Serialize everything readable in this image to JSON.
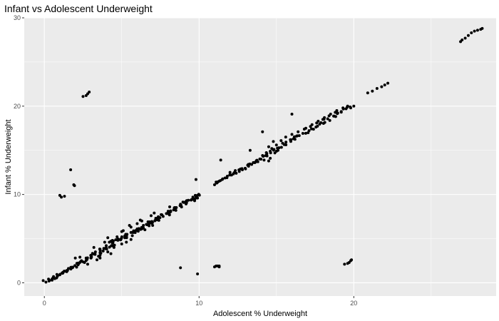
{
  "chart_data": {
    "type": "scatter",
    "title": "Infant vs Adolescent Underweight",
    "xlabel": "Adolescent % Underweight",
    "ylabel": "Infant % Underweight",
    "xlim": [
      -1.3,
      29.2
    ],
    "ylim": [
      -1.5,
      30
    ],
    "x_ticks": [
      0,
      10,
      20
    ],
    "y_ticks": [
      0,
      10,
      20,
      30
    ],
    "grid": true,
    "panel_color": "#ebebeb",
    "grid_color": "#ffffff",
    "point_color": "#000000",
    "trend_segments": [
      {
        "from": [
          0.1,
          0.1
        ],
        "to": [
          10.0,
          9.9
        ],
        "count": 130,
        "spread": 0.35
      },
      {
        "from": [
          11.0,
          11.2
        ],
        "to": [
          19.7,
          19.9
        ],
        "count": 70,
        "spread": 0.3
      }
    ],
    "points": [
      [
        0.3,
        0.2
      ],
      [
        0.5,
        0.3
      ],
      [
        0.8,
        0.6
      ],
      [
        1.0,
        0.9
      ],
      [
        1.2,
        1.1
      ],
      [
        1.5,
        1.4
      ],
      [
        1.8,
        1.7
      ],
      [
        2.1,
        2.2
      ],
      [
        2.4,
        2.5
      ],
      [
        2.7,
        2.8
      ],
      [
        3.0,
        3.1
      ],
      [
        3.3,
        3.5
      ],
      [
        3.6,
        3.8
      ],
      [
        4.0,
        4.2
      ],
      [
        4.4,
        4.5
      ],
      [
        4.8,
        4.9
      ],
      [
        5.2,
        5.3
      ],
      [
        5.6,
        5.7
      ],
      [
        6.0,
        6.1
      ],
      [
        6.4,
        6.5
      ],
      [
        6.8,
        6.9
      ],
      [
        7.2,
        7.3
      ],
      [
        7.6,
        7.7
      ],
      [
        8.0,
        8.1
      ],
      [
        8.4,
        8.5
      ],
      [
        8.8,
        8.9
      ],
      [
        9.2,
        9.3
      ],
      [
        9.6,
        9.7
      ],
      [
        9.9,
        9.9
      ],
      [
        9.9,
        9.6
      ],
      [
        3.5,
        3.0
      ],
      [
        4.5,
        4.0
      ],
      [
        5.0,
        4.4
      ],
      [
        6.5,
        6.0
      ],
      [
        7.0,
        6.5
      ],
      [
        3.6,
        2.8
      ],
      [
        3.4,
        2.6
      ],
      [
        4.3,
        4.7
      ],
      [
        5.1,
        5.9
      ],
      [
        6.2,
        7.1
      ],
      [
        7.1,
        7.9
      ],
      [
        4.2,
        4.6
      ],
      [
        3.8,
        3.6
      ],
      [
        5.6,
        6.3
      ],
      [
        6.9,
        7.6
      ],
      [
        8.1,
        8.6
      ],
      [
        2.8,
        2.1
      ],
      [
        4.1,
        3.5
      ],
      [
        4.3,
        3.3
      ],
      [
        5.6,
        4.9
      ],
      [
        5.0,
        5.8
      ],
      [
        5.5,
        6.5
      ],
      [
        6.0,
        6.7
      ],
      [
        6.3,
        7.0
      ],
      [
        4.1,
        5.1
      ],
      [
        4.4,
        4.8
      ],
      [
        3.2,
        4.0
      ],
      [
        3.9,
        4.6
      ],
      [
        5.3,
        4.6
      ],
      [
        3.6,
        3.1
      ],
      [
        2.0,
        2.8
      ],
      [
        2.3,
        2.9
      ],
      [
        2.6,
        2.3
      ],
      [
        11.0,
        11.1
      ],
      [
        11.1,
        11.4
      ],
      [
        11.3,
        11.5
      ],
      [
        11.5,
        11.7
      ],
      [
        11.8,
        11.9
      ],
      [
        12.1,
        12.2
      ],
      [
        12.4,
        12.4
      ],
      [
        12.8,
        12.8
      ],
      [
        13.2,
        13.2
      ],
      [
        13.6,
        13.6
      ],
      [
        14.0,
        14.0
      ],
      [
        14.3,
        14.4
      ],
      [
        14.6,
        14.9
      ],
      [
        15.0,
        15.6
      ],
      [
        15.3,
        16.1
      ],
      [
        15.6,
        16.5
      ],
      [
        16.0,
        16.8
      ],
      [
        16.4,
        17.1
      ],
      [
        16.9,
        17.5
      ],
      [
        17.3,
        17.9
      ],
      [
        17.7,
        18.3
      ],
      [
        18.1,
        18.7
      ],
      [
        18.5,
        19.1
      ],
      [
        18.9,
        19.5
      ],
      [
        19.3,
        19.8
      ],
      [
        19.6,
        20.0
      ],
      [
        19.8,
        19.8
      ],
      [
        19.5,
        19.7
      ],
      [
        14.5,
        15.4
      ],
      [
        14.8,
        16.0
      ],
      [
        14.7,
        15.2
      ],
      [
        15.1,
        15.0
      ],
      [
        15.4,
        15.8
      ],
      [
        15.9,
        16.2
      ],
      [
        16.3,
        16.6
      ],
      [
        16.8,
        17.4
      ],
      [
        17.2,
        17.7
      ],
      [
        17.6,
        18.1
      ],
      [
        18.0,
        18.5
      ],
      [
        18.4,
        18.9
      ],
      [
        18.8,
        19.3
      ],
      [
        15.0,
        14.9
      ],
      [
        14.9,
        14.7
      ],
      [
        14.6,
        14.1
      ],
      [
        14.2,
        13.9
      ],
      [
        13.8,
        13.7
      ],
      [
        13.4,
        13.4
      ],
      [
        13.0,
        12.9
      ],
      [
        12.6,
        12.6
      ],
      [
        11.4,
        13.9
      ],
      [
        12.0,
        12.5
      ],
      [
        13.3,
        15.0
      ],
      [
        14.1,
        17.1
      ],
      [
        16.0,
        19.1
      ],
      [
        14.5,
        13.8
      ],
      [
        1.0,
        9.9
      ],
      [
        1.1,
        9.7
      ],
      [
        1.3,
        9.8
      ],
      [
        1.7,
        12.8
      ],
      [
        1.9,
        11.1
      ],
      [
        1.95,
        11.0
      ],
      [
        2.5,
        21.1
      ],
      [
        2.7,
        21.2
      ],
      [
        2.8,
        21.4
      ],
      [
        2.9,
        21.6
      ],
      [
        8.8,
        1.7
      ],
      [
        9.9,
        1.0
      ],
      [
        11.0,
        1.8
      ],
      [
        11.1,
        1.9
      ],
      [
        11.2,
        1.9
      ],
      [
        11.3,
        1.8
      ],
      [
        11.3,
        1.9
      ],
      [
        19.4,
        2.1
      ],
      [
        19.6,
        2.2
      ],
      [
        19.7,
        2.3
      ],
      [
        19.8,
        2.5
      ],
      [
        19.85,
        2.6
      ],
      [
        20.9,
        21.5
      ],
      [
        21.2,
        21.7
      ],
      [
        21.5,
        22.0
      ],
      [
        21.8,
        22.2
      ],
      [
        22.0,
        22.4
      ],
      [
        22.2,
        22.6
      ],
      [
        26.9,
        27.3
      ],
      [
        27.0,
        27.5
      ],
      [
        27.2,
        27.7
      ],
      [
        27.4,
        28.0
      ],
      [
        27.6,
        28.3
      ],
      [
        27.8,
        28.5
      ],
      [
        28.0,
        28.6
      ],
      [
        28.2,
        28.7
      ],
      [
        28.3,
        28.8
      ],
      [
        20.0,
        20.0
      ],
      [
        9.8,
        11.7
      ],
      [
        9.8,
        9.8
      ],
      [
        9.0,
        9.1
      ],
      [
        8.5,
        8.2
      ],
      [
        6.7,
        6.9
      ],
      [
        5.7,
        5.7
      ],
      [
        5.2,
        5.1
      ],
      [
        4.7,
        5.2
      ]
    ]
  }
}
